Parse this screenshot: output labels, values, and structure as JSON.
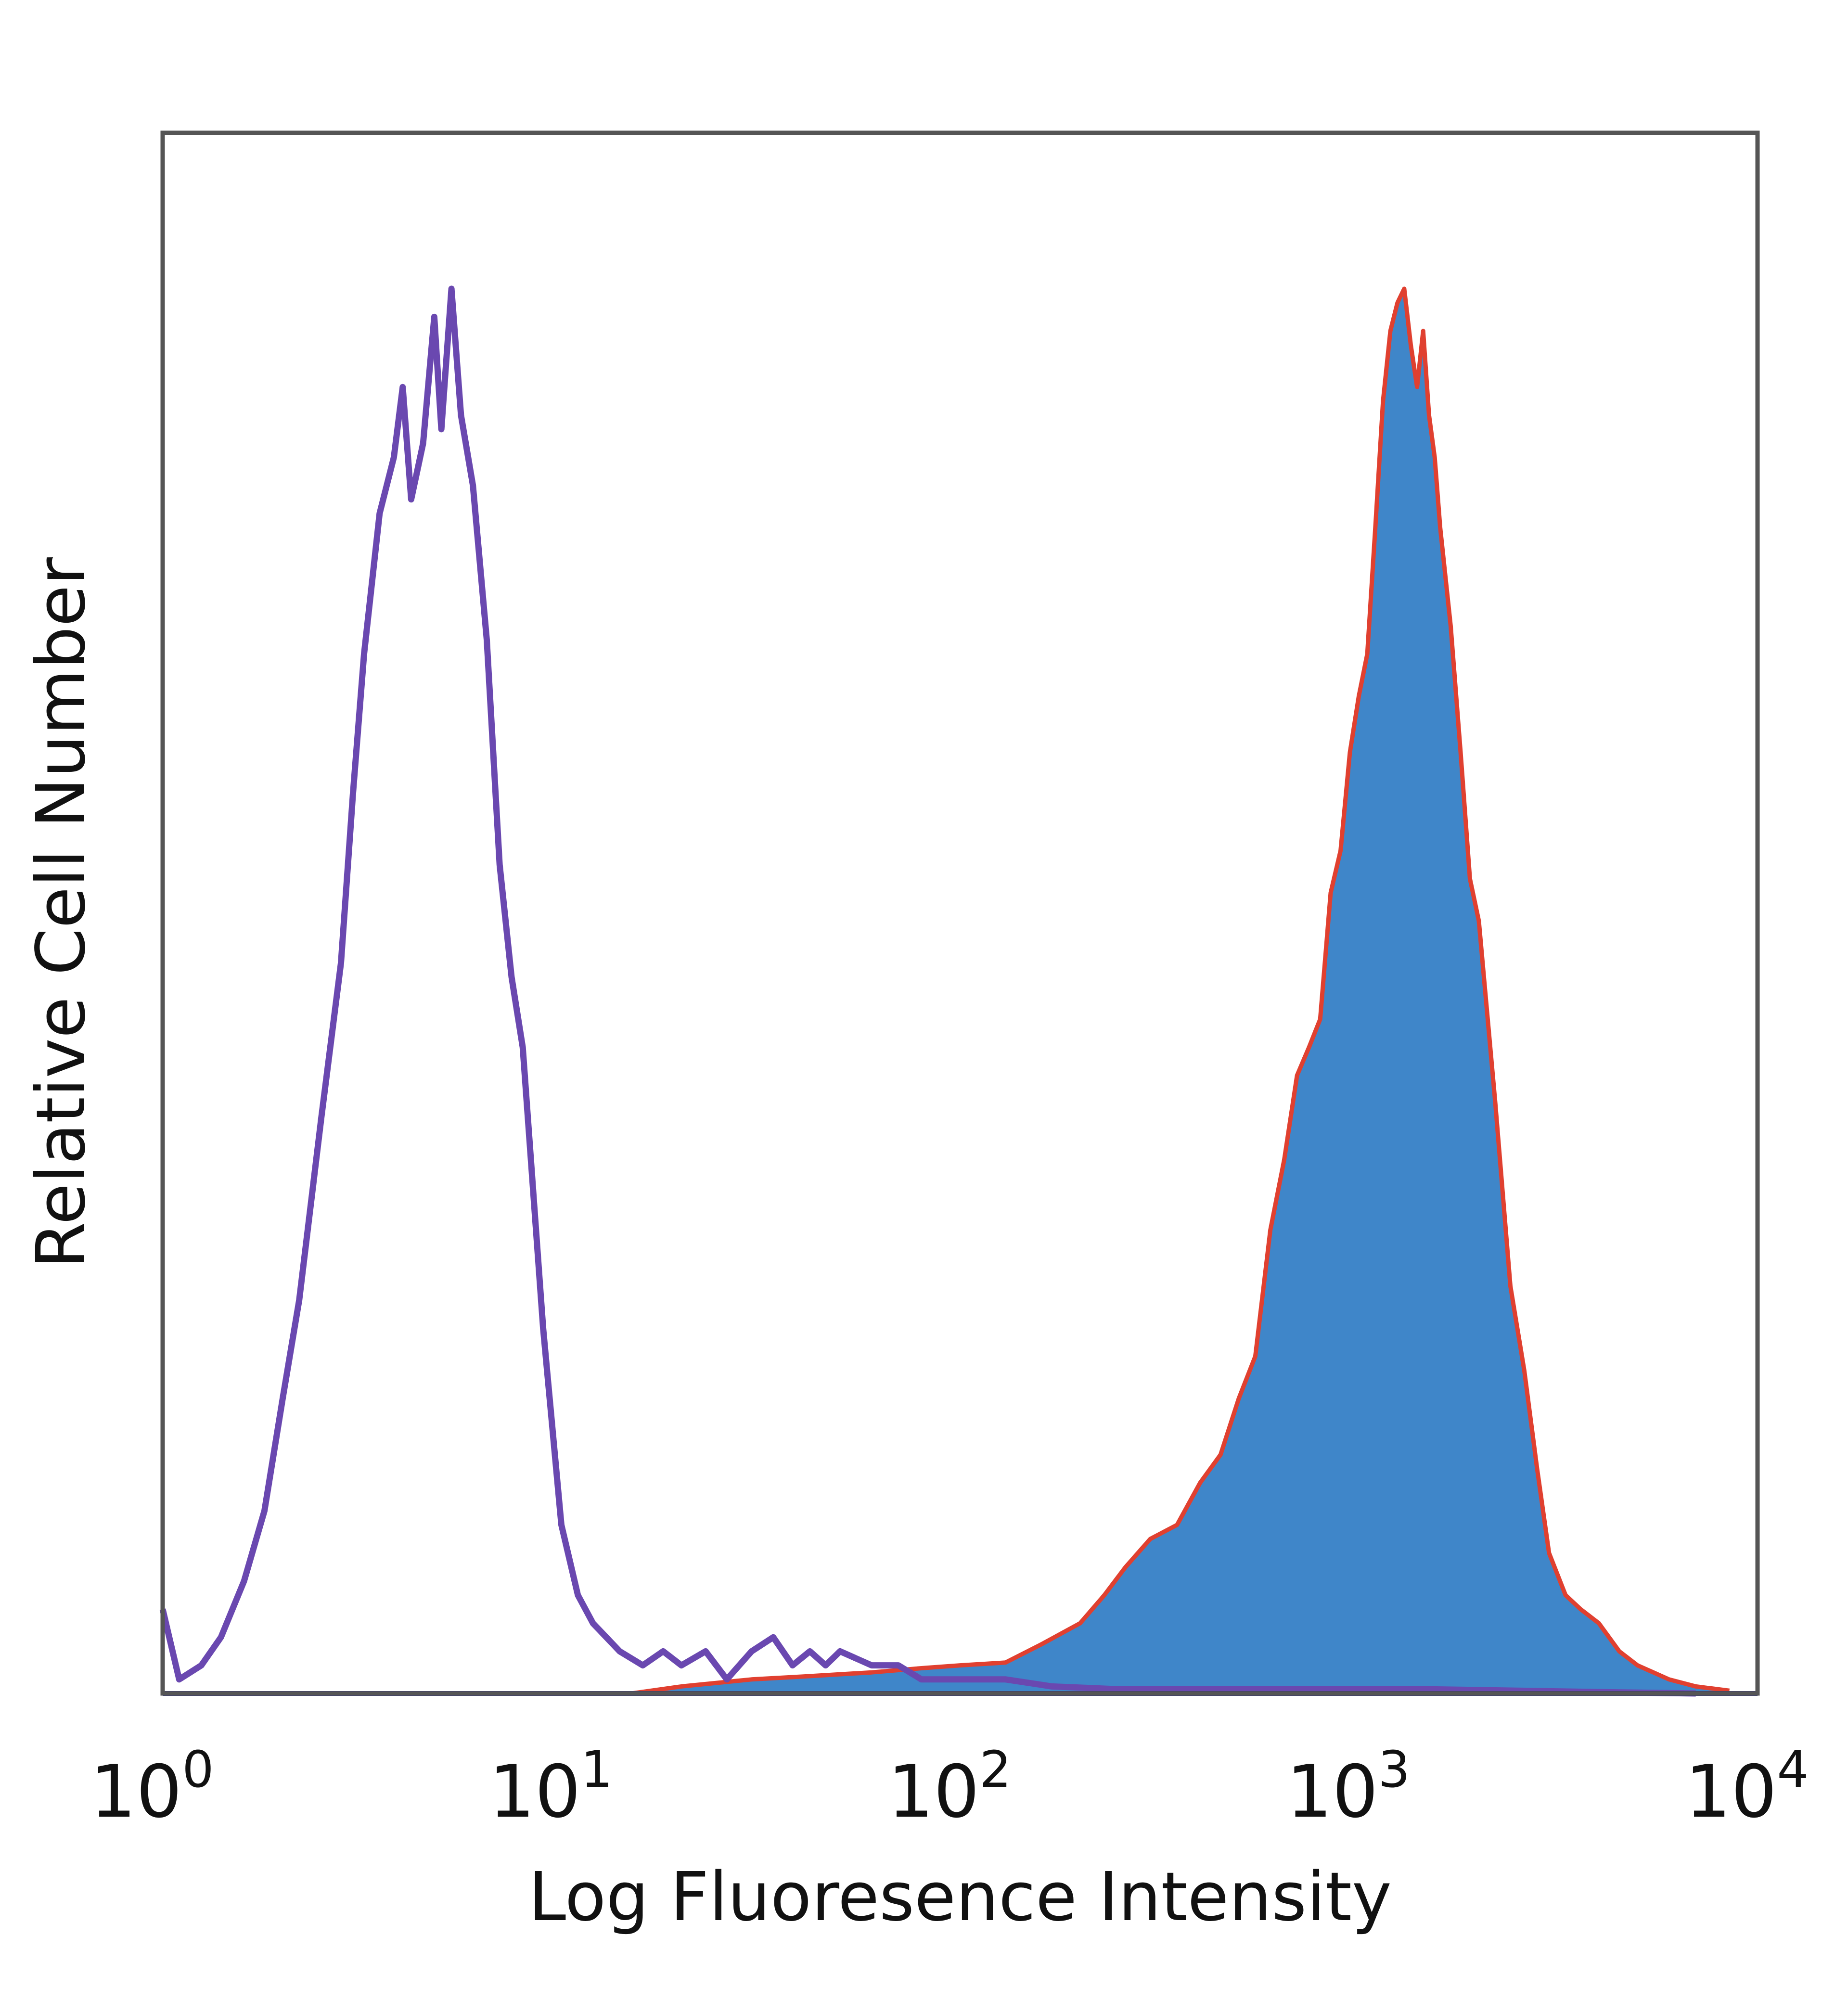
{
  "chart_data": {
    "type": "area",
    "title": "",
    "xlabel": "Log Fluoresence Intensity",
    "ylabel": "Relative Cell Number",
    "x_scale": "log",
    "xlim": [
      1,
      10000
    ],
    "ylim": [
      0,
      1
    ],
    "grid": false,
    "legend": "none",
    "x_ticks": [
      {
        "value": 1,
        "base": "10",
        "exp": "0"
      },
      {
        "value": 10,
        "base": "10",
        "exp": "1"
      },
      {
        "value": 100,
        "base": "10",
        "exp": "2"
      },
      {
        "value": 1000,
        "base": "10",
        "exp": "3"
      },
      {
        "value": 10000,
        "base": "10",
        "exp": "4"
      }
    ],
    "series": [
      {
        "style": "outline",
        "color": "#6a48b0",
        "x": [
          1.0,
          1.1,
          1.25,
          1.4,
          1.6,
          1.8,
          2.0,
          2.2,
          2.5,
          2.8,
          3.0,
          3.2,
          3.5,
          3.8,
          4.0,
          4.2,
          4.5,
          4.8,
          5.0,
          5.3,
          5.6,
          6.0,
          6.5,
          7.0,
          7.5,
          8.0,
          9.0,
          10.0,
          11.0,
          12.0,
          14.0,
          16.0,
          18.0,
          20.0,
          23.0,
          26.0,
          30.0,
          34.0,
          38.0,
          42.0,
          46.0,
          50.0,
          60.0,
          70.0,
          80.0,
          100.0,
          130.0,
          170.0,
          250.0,
          400.0,
          600.0,
          1000.0,
          1500.0,
          2500.0,
          4000.0,
          7000.0
        ],
        "y": [
          0.06,
          0.01,
          0.02,
          0.04,
          0.08,
          0.13,
          0.21,
          0.28,
          0.41,
          0.52,
          0.64,
          0.74,
          0.84,
          0.88,
          0.93,
          0.85,
          0.89,
          0.98,
          0.9,
          1.0,
          0.91,
          0.86,
          0.75,
          0.59,
          0.51,
          0.46,
          0.26,
          0.12,
          0.07,
          0.05,
          0.03,
          0.02,
          0.03,
          0.02,
          0.03,
          0.01,
          0.03,
          0.04,
          0.02,
          0.03,
          0.02,
          0.03,
          0.02,
          0.02,
          0.01,
          0.01,
          0.01,
          0.005,
          0.003,
          0.003,
          0.003,
          0.003,
          0.003,
          0.002,
          0.001,
          0.0
        ]
      },
      {
        "style": "filled",
        "color": "#3f86c9",
        "stroke": "#e04030",
        "x": [
          1.0,
          15.0,
          20.0,
          30.0,
          40.0,
          60.0,
          80.0,
          100.0,
          130.0,
          160.0,
          200.0,
          230.0,
          260.0,
          300.0,
          350.0,
          400.0,
          450.0,
          500.0,
          550.0,
          600.0,
          650.0,
          700.0,
          750.0,
          800.0,
          850.0,
          900.0,
          950.0,
          1000.0,
          1050.0,
          1100.0,
          1150.0,
          1200.0,
          1250.0,
          1300.0,
          1350.0,
          1400.0,
          1450.0,
          1500.0,
          1550.0,
          1600.0,
          1700.0,
          1800.0,
          1900.0,
          2000.0,
          2200.0,
          2400.0,
          2600.0,
          2800.0,
          3000.0,
          3300.0,
          3600.0,
          4000.0,
          4500.0,
          5000.0,
          6000.0,
          7000.0,
          8500.0
        ],
        "y": [
          0.0,
          0.0,
          0.005,
          0.01,
          0.012,
          0.015,
          0.018,
          0.02,
          0.022,
          0.035,
          0.05,
          0.07,
          0.09,
          0.11,
          0.12,
          0.15,
          0.17,
          0.21,
          0.24,
          0.33,
          0.38,
          0.44,
          0.46,
          0.48,
          0.57,
          0.6,
          0.67,
          0.71,
          0.74,
          0.83,
          0.92,
          0.97,
          0.99,
          1.0,
          0.96,
          0.93,
          0.97,
          0.91,
          0.88,
          0.83,
          0.76,
          0.67,
          0.58,
          0.55,
          0.42,
          0.29,
          0.23,
          0.16,
          0.1,
          0.07,
          0.06,
          0.05,
          0.03,
          0.02,
          0.01,
          0.005,
          0.002
        ]
      }
    ]
  }
}
